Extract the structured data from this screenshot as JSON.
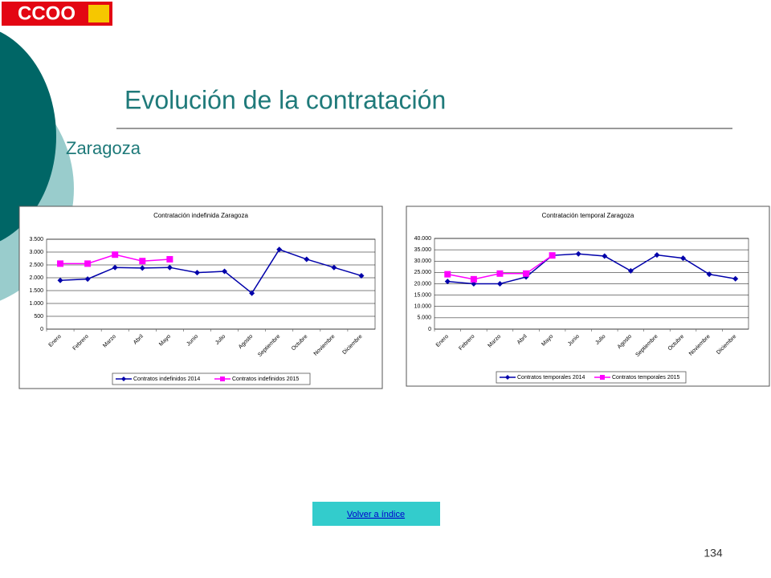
{
  "slide": {
    "logo": "CCOO",
    "title": "Evolución de la contratación",
    "subtitle": "Zaragoza",
    "link": "Volver a índice",
    "page": 134
  },
  "chart_data": [
    {
      "type": "line",
      "title": "Contratación indefinida Zaragoza",
      "categories": [
        "Enero",
        "Febrero",
        "Marzo",
        "Abril",
        "Mayo",
        "Junio",
        "Julio",
        "Agosto",
        "Septiembre",
        "Octubre",
        "Noviembre",
        "Diciembre"
      ],
      "series": [
        {
          "name": "Contratos indefinidos 2014",
          "color": "#0000aa",
          "marker": "diamond",
          "values": [
            1900,
            1950,
            2400,
            2380,
            2400,
            2200,
            2250,
            1400,
            3100,
            2720,
            2400,
            2080
          ]
        },
        {
          "name": "Contratos indefinidos 2015",
          "color": "#ff00ff",
          "marker": "square",
          "values": [
            2550,
            2550,
            2900,
            2650,
            2720,
            null,
            null,
            null,
            null,
            null,
            null,
            null
          ]
        }
      ],
      "ylim": [
        0,
        3500
      ],
      "yticks": [
        0,
        500,
        {
          "value": 1000,
          "label": "1.000"
        },
        {
          "value": 1500,
          "label": "1.500"
        },
        {
          "value": 2000,
          "label": "2.000"
        },
        {
          "value": 2500,
          "label": "2.500"
        },
        {
          "value": 3000,
          "label": "3.000"
        },
        {
          "value": 3500,
          "label": "3.500"
        }
      ],
      "grid": true,
      "legend": "bottom"
    },
    {
      "type": "line",
      "title": "Contratación temporal Zaragoza",
      "categories": [
        "Enero",
        "Febrero",
        "Marzo",
        "Abril",
        "Mayo",
        "Junio",
        "Julio",
        "Agosto",
        "Septiembre",
        "Octubre",
        "Noviembre",
        "Diciembre"
      ],
      "series": [
        {
          "name": "Contratos temporales 2014",
          "color": "#0000aa",
          "marker": "diamond",
          "values": [
            21000,
            20000,
            20000,
            23000,
            32500,
            33200,
            32200,
            25700,
            32700,
            31300,
            24200,
            22200
          ]
        },
        {
          "name": "Contratos temporales 2015",
          "color": "#ff00ff",
          "marker": "square",
          "values": [
            24200,
            22000,
            24500,
            24500,
            32500,
            null,
            null,
            null,
            null,
            null,
            null,
            null
          ]
        }
      ],
      "ylim": [
        0,
        40000
      ],
      "yticks": [
        0,
        {
          "value": 5000,
          "label": "5.000"
        },
        {
          "value": 10000,
          "label": "10.000"
        },
        {
          "value": 15000,
          "label": "15.000"
        },
        {
          "value": 20000,
          "label": "20.000"
        },
        {
          "value": 25000,
          "label": "25.000"
        },
        {
          "value": 30000,
          "label": "30.000"
        },
        {
          "value": 35000,
          "label": "35.000"
        },
        {
          "value": 40000,
          "label": "40.000"
        }
      ],
      "grid": true,
      "legend": "bottom"
    }
  ]
}
